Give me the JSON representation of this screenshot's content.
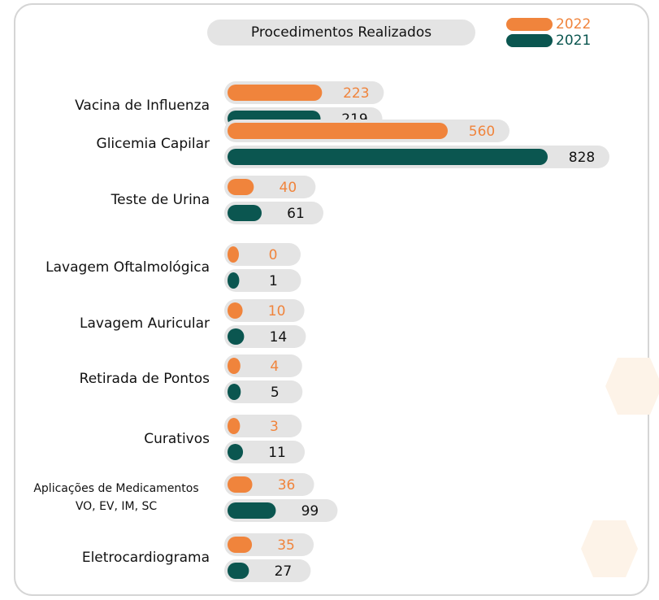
{
  "chart_data": {
    "type": "bar",
    "title": "Procedimentos Realizados",
    "categories": [
      "Vacina de Influenza",
      "Glicemia Capilar",
      "Teste de Urina",
      "Lavagem Oftalmológica",
      "Lavagem Auricular",
      "Retirada de Pontos",
      "Curativos",
      "Aplicações de Medicamentos VO, EV, IM, SC",
      "Eletrocardiograma"
    ],
    "series": [
      {
        "name": "2022",
        "color": "#f0843c",
        "values": [
          223,
          560,
          40,
          0,
          10,
          4,
          3,
          36,
          35
        ]
      },
      {
        "name": "2021",
        "color": "#0b5650",
        "values": [
          219,
          828,
          61,
          1,
          14,
          5,
          11,
          99,
          27
        ]
      }
    ]
  }
}
